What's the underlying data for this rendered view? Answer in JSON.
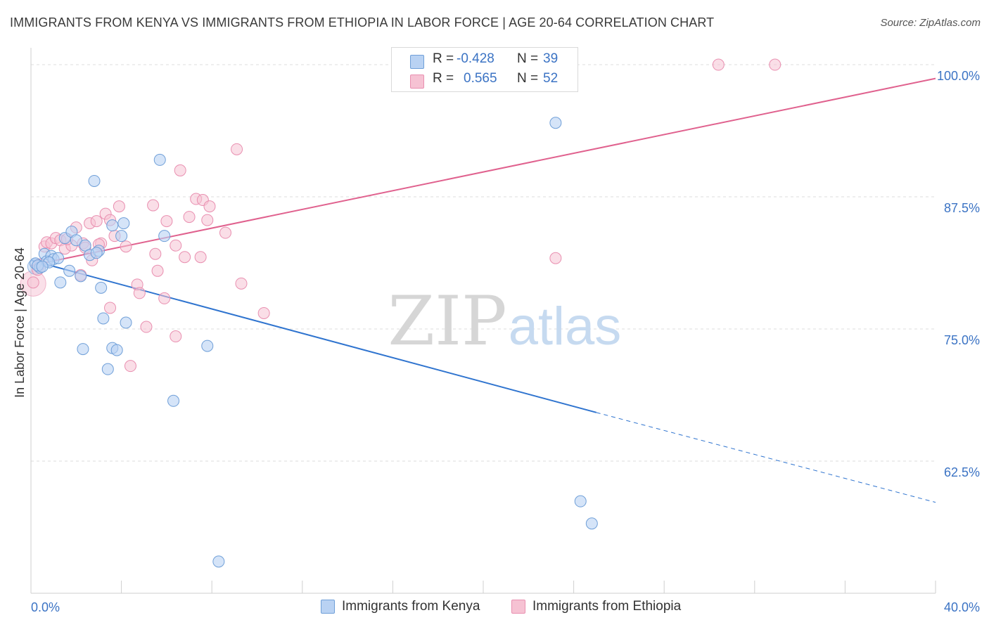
{
  "title": "IMMIGRANTS FROM KENYA VS IMMIGRANTS FROM ETHIOPIA IN LABOR FORCE | AGE 20-64 CORRELATION CHART",
  "source": "Source: ZipAtlas.com",
  "watermark": {
    "zip": "ZIP",
    "atlas": "atlas"
  },
  "legend": {
    "rows": [
      {
        "r_label": "R =",
        "r_value": "-0.428",
        "n_label": "N =",
        "n_value": "39"
      },
      {
        "r_label": "R =",
        "r_value": "0.565",
        "n_label": "N =",
        "n_value": "52"
      }
    ]
  },
  "colors": {
    "kenya_fill": "#b9d2f3",
    "kenya_stroke": "#6f9fd8",
    "kenya_line": "#2f74cf",
    "ethiopia_fill": "#f6c2d3",
    "ethiopia_stroke": "#e98fb0",
    "ethiopia_line": "#e0618e",
    "axis_label": "#3b73c4",
    "grid": "#dcdcdc"
  },
  "chart_data": {
    "type": "scatter",
    "title": "IMMIGRANTS FROM KENYA VS IMMIGRANTS FROM ETHIOPIA IN LABOR FORCE | AGE 20-64 CORRELATION CHART",
    "xlabel": "",
    "ylabel": "In Labor Force | Age 20-64",
    "xlim": [
      0,
      40
    ],
    "ylim": [
      50,
      101
    ],
    "x_tick_labels": [
      "0.0%",
      "40.0%"
    ],
    "y_ticks": [
      62.5,
      75.0,
      87.5,
      100.0
    ],
    "y_tick_labels": [
      "62.5%",
      "75.0%",
      "87.5%",
      "100.0%"
    ],
    "series": [
      {
        "name": "Immigrants from Kenya",
        "r": -0.428,
        "n": 39,
        "trend": {
          "x0": 0.0,
          "y0": 81.5,
          "x1": 25.0,
          "y1": 67.1,
          "dash_x1": 40.0,
          "dash_y1": 58.6
        },
        "points": [
          [
            0.2,
            81.2
          ],
          [
            0.4,
            80.8
          ],
          [
            0.6,
            82.1
          ],
          [
            0.7,
            81.4
          ],
          [
            0.9,
            81.9
          ],
          [
            1.0,
            81.6
          ],
          [
            1.3,
            79.4
          ],
          [
            1.5,
            83.6
          ],
          [
            1.7,
            80.5
          ],
          [
            1.8,
            84.2
          ],
          [
            2.0,
            83.4
          ],
          [
            2.2,
            80.0
          ],
          [
            2.4,
            82.9
          ],
          [
            2.6,
            82.0
          ],
          [
            2.8,
            89.0
          ],
          [
            3.0,
            82.4
          ],
          [
            3.1,
            78.9
          ],
          [
            3.2,
            76.0
          ],
          [
            2.3,
            73.1
          ],
          [
            3.4,
            71.2
          ],
          [
            3.6,
            73.2
          ],
          [
            3.8,
            73.0
          ],
          [
            3.6,
            84.8
          ],
          [
            4.0,
            83.8
          ],
          [
            4.1,
            85.0
          ],
          [
            4.2,
            75.6
          ],
          [
            5.7,
            91.0
          ],
          [
            5.9,
            83.8
          ],
          [
            6.3,
            68.2
          ],
          [
            7.8,
            73.4
          ],
          [
            8.3,
            53.0
          ],
          [
            23.2,
            94.5
          ],
          [
            24.3,
            58.7
          ],
          [
            24.8,
            56.6
          ],
          [
            0.3,
            81.0
          ],
          [
            1.2,
            81.7
          ],
          [
            0.8,
            81.3
          ],
          [
            2.9,
            82.2
          ],
          [
            0.5,
            80.9
          ]
        ]
      },
      {
        "name": "Immigrants from Ethiopia",
        "r": 0.565,
        "n": 52,
        "trend": {
          "x0": 0.0,
          "y0": 81.0,
          "x1": 40.0,
          "y1": 98.7
        },
        "points": [
          [
            0.1,
            79.4
          ],
          [
            0.3,
            80.6
          ],
          [
            0.6,
            82.8
          ],
          [
            0.7,
            83.2
          ],
          [
            0.9,
            83.1
          ],
          [
            1.1,
            83.6
          ],
          [
            1.3,
            83.4
          ],
          [
            1.5,
            82.6
          ],
          [
            1.8,
            82.9
          ],
          [
            2.0,
            84.6
          ],
          [
            2.2,
            80.1
          ],
          [
            2.3,
            83.1
          ],
          [
            2.6,
            85.0
          ],
          [
            2.7,
            81.5
          ],
          [
            2.9,
            85.2
          ],
          [
            3.1,
            83.1
          ],
          [
            3.3,
            85.9
          ],
          [
            3.5,
            85.3
          ],
          [
            3.5,
            77.0
          ],
          [
            3.7,
            83.8
          ],
          [
            3.9,
            86.6
          ],
          [
            4.2,
            82.8
          ],
          [
            4.4,
            71.5
          ],
          [
            4.7,
            79.2
          ],
          [
            4.8,
            78.4
          ],
          [
            5.1,
            75.2
          ],
          [
            5.4,
            86.7
          ],
          [
            5.5,
            82.1
          ],
          [
            5.6,
            80.5
          ],
          [
            5.9,
            77.9
          ],
          [
            6.0,
            85.2
          ],
          [
            6.4,
            74.3
          ],
          [
            6.4,
            82.9
          ],
          [
            6.6,
            90.0
          ],
          [
            6.8,
            81.8
          ],
          [
            7.0,
            85.6
          ],
          [
            7.3,
            87.3
          ],
          [
            7.5,
            81.8
          ],
          [
            7.6,
            87.2
          ],
          [
            7.8,
            85.3
          ],
          [
            7.9,
            86.6
          ],
          [
            8.6,
            84.1
          ],
          [
            9.1,
            92.0
          ],
          [
            9.3,
            79.3
          ],
          [
            10.3,
            76.5
          ],
          [
            23.2,
            81.7
          ],
          [
            30.4,
            100.0
          ],
          [
            32.9,
            100.0
          ],
          [
            0.4,
            81.1
          ],
          [
            1.6,
            83.5
          ],
          [
            2.4,
            82.7
          ],
          [
            3.0,
            83.0
          ]
        ]
      }
    ]
  },
  "bottom_legend": [
    {
      "label": "Immigrants from Kenya"
    },
    {
      "label": "Immigrants from Ethiopia"
    }
  ]
}
